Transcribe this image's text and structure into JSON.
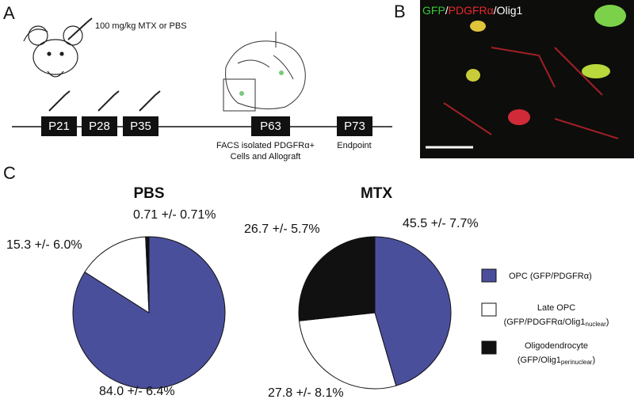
{
  "panels": {
    "a": "A",
    "b": "B",
    "c": "C"
  },
  "timeline": {
    "dose": "100 mg/kg MTX or PBS",
    "points": [
      "P21",
      "P28",
      "P35",
      "P63",
      "P73"
    ],
    "facs": [
      "FACS isolated PDGFRα+",
      "Cells and Allograft"
    ],
    "endpoint": "Endpoint"
  },
  "image": {
    "label_parts": [
      {
        "text": "GFP",
        "color": "#39c83a"
      },
      {
        "text": "/",
        "color": "#ffffff"
      },
      {
        "text": "PDGFRα",
        "color": "#e8262a"
      },
      {
        "text": "/Olig1",
        "color": "#ffffff"
      }
    ]
  },
  "legend": [
    {
      "label": "OPC (GFP/PDGFRα)"
    },
    {
      "label": "Late OPC",
      "note": "(GFP/PDGFRα/Olig1",
      "note_sub": "nuclear",
      "note_end": ")"
    },
    {
      "label": "Oligodendrocyte",
      "note": "(GFP/Olig1",
      "note_sub": "perinuclear",
      "note_end": ")"
    }
  ],
  "chart_data": [
    {
      "type": "pie",
      "title": "PBS",
      "values": [
        84.0,
        15.3,
        0.71
      ],
      "value_labels": [
        "84.0 +/- 6.4%",
        "15.3 +/- 6.0%",
        "0.71 +/- 0.71%"
      ],
      "colors": [
        "#4a4f9c",
        "#ffffff",
        "#111111"
      ]
    },
    {
      "type": "pie",
      "title": "MTX",
      "values": [
        45.5,
        27.8,
        26.7
      ],
      "value_labels": [
        "45.5 +/- 7.7%",
        "27.8 +/- 8.1%",
        "26.7 +/- 5.7%"
      ],
      "colors": [
        "#4a4f9c",
        "#ffffff",
        "#111111"
      ]
    }
  ]
}
